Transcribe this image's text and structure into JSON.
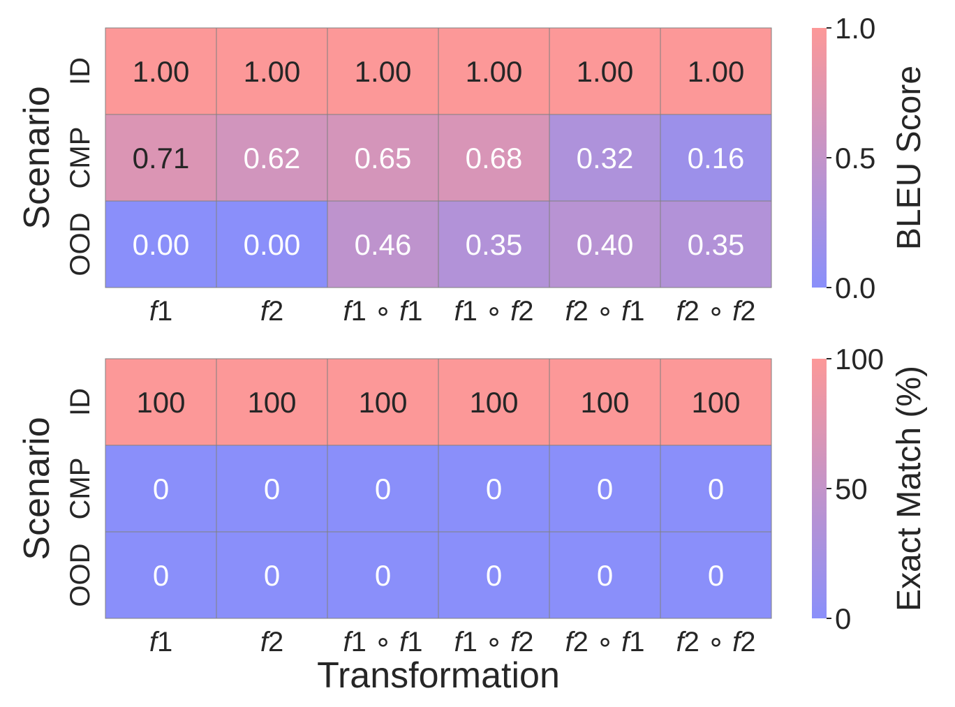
{
  "chart_data": [
    {
      "type": "heatmap",
      "title": "",
      "xlabel": "",
      "ylabel": "Scenario",
      "rows": [
        "ID",
        "CMP",
        "OOD"
      ],
      "columns": [
        [
          "f",
          "1"
        ],
        [
          "f",
          "2"
        ],
        [
          "f",
          "1 ∘ ",
          "f",
          "1"
        ],
        [
          "f",
          "1 ∘ ",
          "f",
          "2"
        ],
        [
          "f",
          "2 ∘ ",
          "f",
          "1"
        ],
        [
          "f",
          "2 ∘ ",
          "f",
          "2"
        ]
      ],
      "values": [
        [
          1.0,
          1.0,
          1.0,
          1.0,
          1.0,
          1.0
        ],
        [
          0.71,
          0.62,
          0.65,
          0.68,
          0.32,
          0.16
        ],
        [
          0.0,
          0.0,
          0.46,
          0.35,
          0.4,
          0.35
        ]
      ],
      "value_format": "fixed2",
      "vmin": 0,
      "vmax": 1,
      "colorbar": {
        "label": "BLEU Score",
        "ticks": [
          "0.0",
          "0.5",
          "1.0"
        ],
        "tick_values": [
          0,
          0.5,
          1
        ]
      },
      "colormap": {
        "low": "#8a8ffa",
        "high": "#fc9898"
      }
    },
    {
      "type": "heatmap",
      "title": "",
      "xlabel": "Transformation",
      "ylabel": "Scenario",
      "rows": [
        "ID",
        "CMP",
        "OOD"
      ],
      "columns": [
        [
          "f",
          "1"
        ],
        [
          "f",
          "2"
        ],
        [
          "f",
          "1 ∘ ",
          "f",
          "1"
        ],
        [
          "f",
          "1 ∘ ",
          "f",
          "2"
        ],
        [
          "f",
          "2 ∘ ",
          "f",
          "1"
        ],
        [
          "f",
          "2 ∘ ",
          "f",
          "2"
        ]
      ],
      "values": [
        [
          100,
          100,
          100,
          100,
          100,
          100
        ],
        [
          0,
          0,
          0,
          0,
          0,
          0
        ],
        [
          0,
          0,
          0,
          0,
          0,
          0
        ]
      ],
      "value_format": "integer",
      "vmin": 0,
      "vmax": 100,
      "colorbar": {
        "label": "Exact Match (%)",
        "ticks": [
          "0",
          "50",
          "100"
        ],
        "tick_values": [
          0,
          50,
          100
        ]
      },
      "colormap": {
        "low": "#8a8ffa",
        "high": "#fc9898"
      }
    }
  ]
}
